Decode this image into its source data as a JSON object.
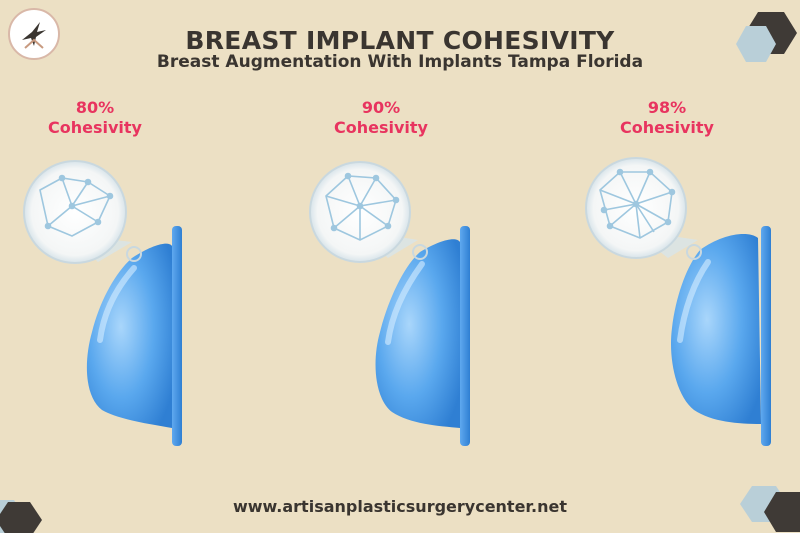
{
  "header": {
    "title": "BREAST IMPLANT COHESIVITY",
    "subtitle": "Breast Augmentation With Implants Tampa Florida"
  },
  "implants": [
    {
      "percent": "80%",
      "label": "Cohesivity",
      "level": 0.8
    },
    {
      "percent": "90%",
      "label": "Cohesivity",
      "level": 0.9
    },
    {
      "percent": "98%",
      "label": "Cohesivity",
      "level": 0.98
    }
  ],
  "footer": {
    "website": "www.artisanplasticsurgerycenter.net"
  },
  "colors": {
    "background": "#ece0c4",
    "accent": "#e8345f",
    "text": "#3a3530",
    "implant": "#5aa8ee",
    "hex_dark": "#3f3a36",
    "hex_light": "#b9cfd8"
  },
  "logo": {
    "icon": "bird-logo-icon"
  }
}
